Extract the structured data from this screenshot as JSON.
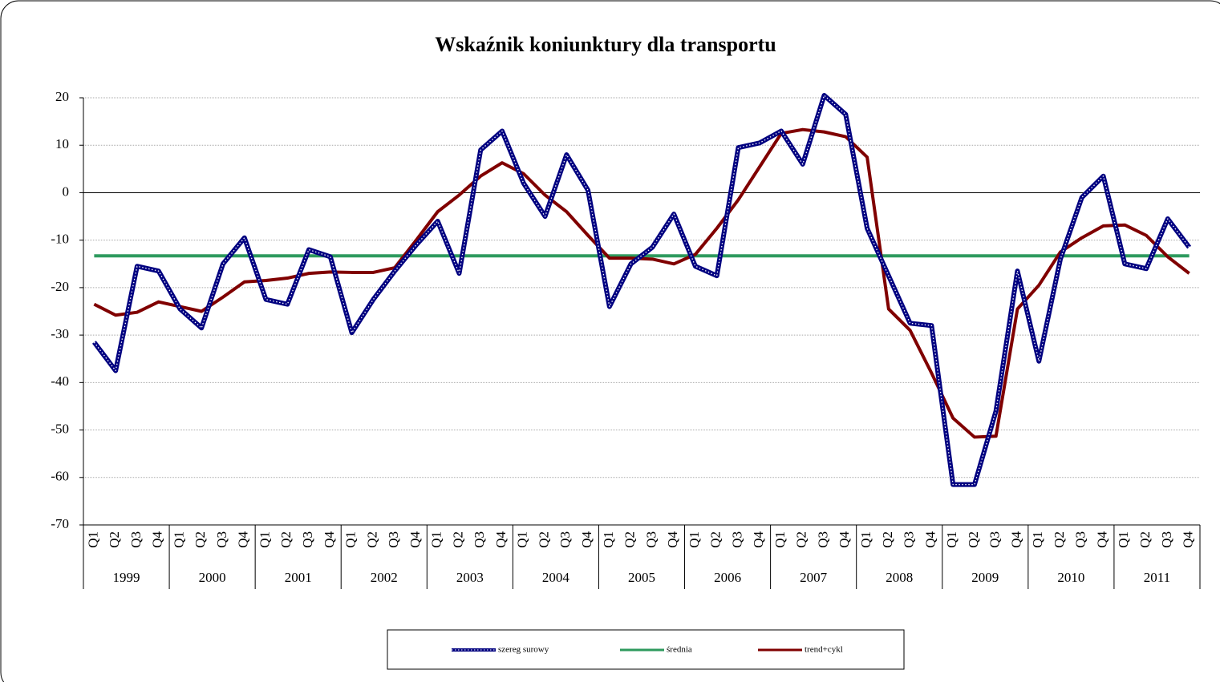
{
  "chart_data": {
    "type": "line",
    "title": "Wskaźnik koniunktury dla transportu",
    "categories": [
      "Q1",
      "Q2",
      "Q3",
      "Q4",
      "Q1",
      "Q2",
      "Q3",
      "Q4",
      "Q1",
      "Q2",
      "Q3",
      "Q4",
      "Q1",
      "Q2",
      "Q3",
      "Q4",
      "Q1",
      "Q2",
      "Q3",
      "Q4",
      "Q1",
      "Q2",
      "Q3",
      "Q4",
      "Q1",
      "Q2",
      "Q3",
      "Q4",
      "Q1",
      "Q2",
      "Q3",
      "Q4",
      "Q1",
      "Q2",
      "Q3",
      "Q4",
      "Q1",
      "Q2",
      "Q3",
      "Q4",
      "Q1",
      "Q2",
      "Q3",
      "Q4",
      "Q1",
      "Q2",
      "Q3",
      "Q4",
      "Q1",
      "Q2",
      "Q3",
      "Q4"
    ],
    "years": [
      "1999",
      "2000",
      "2001",
      "2002",
      "2003",
      "2004",
      "2005",
      "2006",
      "2007",
      "2008",
      "2009",
      "2010",
      "2011"
    ],
    "series": [
      {
        "name": "szereg surowy",
        "color": "#000080",
        "values": [
          -31.5,
          -37.5,
          -15.5,
          -16.5,
          -24.5,
          -28.5,
          -15,
          -9.5,
          -22.5,
          -23.5,
          -12,
          -13.5,
          -29.5,
          -22.5,
          -16.5,
          -11,
          -6,
          -17,
          9,
          13,
          2,
          -5,
          8,
          0.5,
          -24,
          -15,
          -11.5,
          -4.5,
          -15.5,
          -17.5,
          9.5,
          10.5,
          13,
          6,
          20.5,
          16.5,
          -7.5,
          -17.5,
          -27.5,
          -28,
          -61.5,
          -61.5,
          -46,
          -16.5,
          -35.5,
          -14,
          -1,
          3.5,
          -15,
          -16,
          -5.5,
          -11.5
        ]
      },
      {
        "name": "średnia",
        "color": "#2e9a5e",
        "values": [
          -13.3,
          -13.3,
          -13.3,
          -13.3,
          -13.3,
          -13.3,
          -13.3,
          -13.3,
          -13.3,
          -13.3,
          -13.3,
          -13.3,
          -13.3,
          -13.3,
          -13.3,
          -13.3,
          -13.3,
          -13.3,
          -13.3,
          -13.3,
          -13.3,
          -13.3,
          -13.3,
          -13.3,
          -13.3,
          -13.3,
          -13.3,
          -13.3,
          -13.3,
          -13.3,
          -13.3,
          -13.3,
          -13.3,
          -13.3,
          -13.3,
          -13.3,
          -13.3,
          -13.3,
          -13.3,
          -13.3,
          -13.3,
          -13.3,
          -13.3,
          -13.3,
          -13.3,
          -13.3,
          -13.3,
          -13.3,
          -13.3,
          -13.3,
          -13.3,
          -13.3
        ]
      },
      {
        "name": "trend+cykl",
        "color": "#800000",
        "values": [
          -23.5,
          -25.8,
          -25.2,
          -23,
          -24,
          -25,
          -22,
          -18.8,
          -18.5,
          -18,
          -17,
          -16.7,
          -16.8,
          -16.8,
          -15.8,
          -10,
          -4,
          -0.5,
          3.5,
          6.3,
          4,
          -0.5,
          -4,
          -9,
          -13.8,
          -13.8,
          -14,
          -15,
          -13,
          -7.5,
          -1.5,
          5.5,
          12.5,
          13.3,
          12.8,
          11.8,
          7.5,
          -24.5,
          -29,
          -38,
          -47.5,
          -51.5,
          -51.3,
          -24.5,
          -19.5,
          -12.5,
          -9.5,
          -7,
          -6.8,
          -9,
          -13.5,
          -17
        ]
      }
    ],
    "ylim": [
      -70,
      20
    ],
    "yticks": [
      -70,
      -60,
      -50,
      -40,
      -30,
      -20,
      -10,
      0,
      10,
      20
    ],
    "grid": true
  }
}
